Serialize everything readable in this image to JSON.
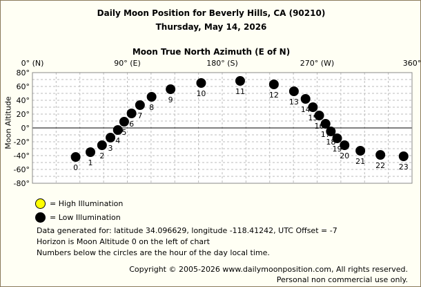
{
  "header": {
    "title": "Daily Moon Position for Beverly Hills, CA (90210)",
    "date": "Thursday, May 14, 2026"
  },
  "legend": {
    "high": "= High Illumination",
    "low": "= Low Illumination"
  },
  "notes": {
    "line1": "Data generated for: latitude 34.096629, longitude -118.41242, UTC Offset = -7",
    "line2": "Horizon is Moon Altitude 0 on the left of chart",
    "line3": "Numbers below the circles are the hour of the day local time."
  },
  "footer": {
    "copyright": "Copyright © 2005-2026 www.dailymoonposition.com, All rights reserved.",
    "personal": "Personal non commercial use only."
  },
  "colors": {
    "high_illumination": "#ffff00",
    "low_illumination": "#000000",
    "grid": "#bbbbbb",
    "frame": "#8a7a5a"
  },
  "chart_data": {
    "type": "scatter",
    "title": "Moon True North Azimuth (E of N)",
    "xlabel": "Moon True North Azimuth (E of N)",
    "ylabel": "Moon Altitude",
    "xlim": [
      0,
      360
    ],
    "ylim": [
      -80,
      80
    ],
    "x_ticks": [
      0,
      90,
      180,
      270,
      360
    ],
    "x_tick_labels": [
      "0° (N)",
      "90° (E)",
      "180° (S)",
      "270° (W)",
      "360°"
    ],
    "y_ticks": [
      80,
      60,
      40,
      20,
      0,
      -20,
      -40,
      -60,
      -80
    ],
    "y_tick_labels": [
      "80°",
      "60°",
      "40°",
      "20°",
      "0°",
      "-20°",
      "-40°",
      "-60°",
      "-80°"
    ],
    "grid": true,
    "points": [
      {
        "hour": "0",
        "az": 41,
        "alt": -42
      },
      {
        "hour": "1",
        "az": 55,
        "alt": -35
      },
      {
        "hour": "2",
        "az": 66,
        "alt": -25
      },
      {
        "hour": "3",
        "az": 74,
        "alt": -14
      },
      {
        "hour": "4",
        "az": 81,
        "alt": -3
      },
      {
        "hour": "5",
        "az": 87,
        "alt": 9
      },
      {
        "hour": "6",
        "az": 94,
        "alt": 21
      },
      {
        "hour": "7",
        "az": 102,
        "alt": 33
      },
      {
        "hour": "8",
        "az": 113,
        "alt": 45
      },
      {
        "hour": "9",
        "az": 131,
        "alt": 56
      },
      {
        "hour": "10",
        "az": 160,
        "alt": 65
      },
      {
        "hour": "11",
        "az": 197,
        "alt": 68
      },
      {
        "hour": "12",
        "az": 229,
        "alt": 63
      },
      {
        "hour": "13",
        "az": 248,
        "alt": 53
      },
      {
        "hour": "14",
        "az": 259,
        "alt": 42
      },
      {
        "hour": "15",
        "az": 266,
        "alt": 30
      },
      {
        "hour": "16",
        "az": 272,
        "alt": 18
      },
      {
        "hour": "17",
        "az": 278,
        "alt": 6
      },
      {
        "hour": "18",
        "az": 283,
        "alt": -5
      },
      {
        "hour": "19",
        "az": 289,
        "alt": -15
      },
      {
        "hour": "20",
        "az": 296,
        "alt": -25
      },
      {
        "hour": "21",
        "az": 311,
        "alt": -33
      },
      {
        "hour": "22",
        "az": 330,
        "alt": -39
      },
      {
        "hour": "23",
        "az": 352,
        "alt": -41
      }
    ]
  }
}
